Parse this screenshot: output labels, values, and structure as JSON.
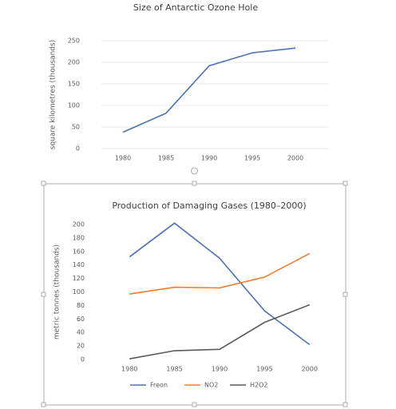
{
  "chart_data": [
    {
      "type": "line",
      "title": "Size of Antarctic Ozone Hole",
      "y_label": "square kilometres (thousands)",
      "categories": [
        "1980",
        "1985",
        "1990",
        "1995",
        "2000"
      ],
      "values": [
        38,
        82,
        192,
        222,
        233
      ],
      "color": "#4a72b8",
      "ylim": [
        0,
        250
      ],
      "yticks": [
        0,
        50,
        100,
        150,
        200,
        250
      ],
      "grid": true
    },
    {
      "type": "line",
      "title": "Production of Damaging Gases (1980–2000)",
      "y_label": "metric tonnes (thousands)",
      "categories": [
        "1980",
        "1985",
        "1990",
        "1995",
        "2000"
      ],
      "series": [
        {
          "name": "Freon",
          "color": "#4a72b8",
          "values": [
            152,
            202,
            150,
            72,
            22
          ]
        },
        {
          "name": "NO2",
          "color": "#ed7d31",
          "values": [
            97,
            107,
            106,
            122,
            157
          ]
        },
        {
          "name": "H2O2",
          "color": "#595959",
          "values": [
            1,
            13,
            15,
            55,
            81
          ]
        }
      ],
      "ylim": [
        0,
        200
      ],
      "yticks": [
        0,
        20,
        40,
        60,
        80,
        100,
        120,
        140,
        160,
        180,
        200
      ],
      "grid": false,
      "legend": "bottom"
    }
  ]
}
